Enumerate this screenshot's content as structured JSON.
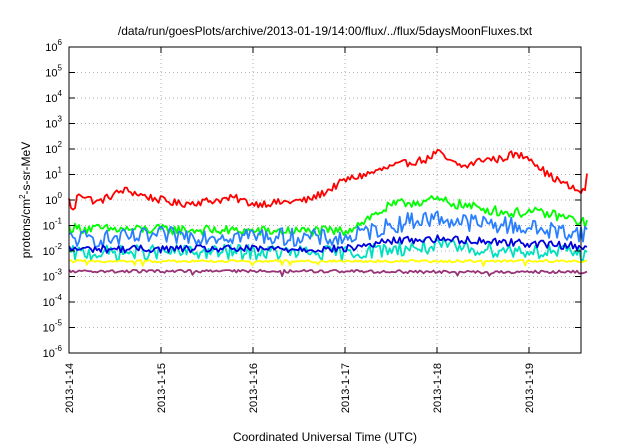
{
  "chart_data": {
    "type": "line",
    "title": "/data/run/goesPlots/archive/2013-01-19/14:00/flux/../flux/5daysMoonFluxes.txt",
    "xlabel": "Coordinated Universal Time (UTC)",
    "ylabel": "protons/cm2-s-sr-MeV",
    "ylabel_parts": {
      "pre": "protons/cm",
      "sup": "2",
      "post": "-s-sr-MeV"
    },
    "x_ticks": [
      "2013-1-14",
      "2013-1-15",
      "2013-1-16",
      "2013-1-17",
      "2013-1-18",
      "2013-1-19"
    ],
    "x_range_days": [
      0,
      5.63
    ],
    "y_scale": "log",
    "ylim": [
      1e-06,
      1000000.0
    ],
    "y_ticks": [
      {
        "base": "10",
        "exp": "-6",
        "value": 1e-06
      },
      {
        "base": "10",
        "exp": "-5",
        "value": 1e-05
      },
      {
        "base": "10",
        "exp": "-4",
        "value": 0.0001
      },
      {
        "base": "10",
        "exp": "-3",
        "value": 0.001
      },
      {
        "base": "10",
        "exp": "-2",
        "value": 0.01
      },
      {
        "base": "10",
        "exp": "-1",
        "value": 0.1
      },
      {
        "base": "10",
        "exp": "0",
        "value": 1
      },
      {
        "base": "10",
        "exp": "1",
        "value": 10
      },
      {
        "base": "10",
        "exp": "2",
        "value": 100
      },
      {
        "base": "10",
        "exp": "3",
        "value": 1000
      },
      {
        "base": "10",
        "exp": "4",
        "value": 10000
      },
      {
        "base": "10",
        "exp": "5",
        "value": 100000
      },
      {
        "base": "10",
        "exp": "6",
        "value": 1000000
      }
    ],
    "grid": true,
    "series": [
      {
        "color": "#ff0000",
        "noise": 0.15,
        "points": [
          [
            0,
            1.0
          ],
          [
            0.05,
            0.3
          ],
          [
            0.1,
            2.0
          ],
          [
            0.3,
            0.8
          ],
          [
            0.6,
            2.5
          ],
          [
            0.9,
            1.2
          ],
          [
            1.2,
            0.7
          ],
          [
            1.5,
            0.9
          ],
          [
            1.8,
            1.2
          ],
          [
            2.0,
            0.7
          ],
          [
            2.3,
            0.8
          ],
          [
            2.6,
            1.0
          ],
          [
            2.8,
            2.2
          ],
          [
            3.0,
            6.0
          ],
          [
            3.3,
            12.0
          ],
          [
            3.5,
            20.0
          ],
          [
            3.7,
            30.0
          ],
          [
            3.9,
            40.0
          ],
          [
            4.0,
            80.0
          ],
          [
            4.15,
            30.0
          ],
          [
            4.3,
            20.0
          ],
          [
            4.5,
            40.0
          ],
          [
            4.7,
            40.0
          ],
          [
            4.8,
            60.0
          ],
          [
            5.0,
            50.0
          ],
          [
            5.2,
            10.0
          ],
          [
            5.4,
            4.0
          ],
          [
            5.5,
            2.5
          ],
          [
            5.6,
            2.0
          ],
          [
            5.63,
            8.0
          ]
        ]
      },
      {
        "color": "#00ff00",
        "noise": 0.2,
        "points": [
          [
            0,
            0.08
          ],
          [
            0.5,
            0.07
          ],
          [
            1.0,
            0.07
          ],
          [
            2.0,
            0.06
          ],
          [
            3.0,
            0.06
          ],
          [
            3.2,
            0.15
          ],
          [
            3.5,
            0.6
          ],
          [
            3.7,
            0.8
          ],
          [
            4.0,
            1.0
          ],
          [
            4.3,
            0.6
          ],
          [
            4.6,
            0.4
          ],
          [
            4.8,
            0.3
          ],
          [
            5.0,
            0.35
          ],
          [
            5.3,
            0.25
          ],
          [
            5.63,
            0.12
          ]
        ]
      },
      {
        "color": "#2a7fff",
        "noise": 0.35,
        "points": [
          [
            0,
            0.03
          ],
          [
            0.5,
            0.03
          ],
          [
            1.0,
            0.04
          ],
          [
            2.0,
            0.04
          ],
          [
            3.0,
            0.03
          ],
          [
            3.2,
            0.05
          ],
          [
            3.5,
            0.1
          ],
          [
            3.7,
            0.15
          ],
          [
            4.0,
            0.2
          ],
          [
            4.2,
            0.15
          ],
          [
            4.5,
            0.12
          ],
          [
            4.8,
            0.1
          ],
          [
            5.0,
            0.08
          ],
          [
            5.3,
            0.06
          ],
          [
            5.63,
            0.05
          ]
        ]
      },
      {
        "color": "#00e0c0",
        "noise": 0.3,
        "points": [
          [
            0,
            0.008
          ],
          [
            1.0,
            0.009
          ],
          [
            2.0,
            0.009
          ],
          [
            3.0,
            0.008
          ],
          [
            3.5,
            0.012
          ],
          [
            4.0,
            0.015
          ],
          [
            4.5,
            0.012
          ],
          [
            5.0,
            0.01
          ],
          [
            5.63,
            0.008
          ]
        ]
      },
      {
        "color": "#0000dd",
        "noise": 0.15,
        "points": [
          [
            0,
            0.012
          ],
          [
            1.0,
            0.012
          ],
          [
            2.0,
            0.012
          ],
          [
            3.0,
            0.012
          ],
          [
            3.5,
            0.025
          ],
          [
            4.0,
            0.03
          ],
          [
            4.5,
            0.025
          ],
          [
            5.0,
            0.02
          ],
          [
            5.63,
            0.015
          ]
        ]
      },
      {
        "color": "#ffff00",
        "noise": 0.05,
        "points": [
          [
            0,
            0.004
          ],
          [
            1.0,
            0.004
          ],
          [
            2.0,
            0.004
          ],
          [
            3.0,
            0.004
          ],
          [
            4.0,
            0.004
          ],
          [
            5.0,
            0.004
          ],
          [
            5.63,
            0.004
          ]
        ]
      },
      {
        "color": "#993377",
        "noise": 0.06,
        "points": [
          [
            0,
            0.0016
          ],
          [
            1.0,
            0.0016
          ],
          [
            2.0,
            0.0016
          ],
          [
            3.0,
            0.0016
          ],
          [
            4.0,
            0.0015
          ],
          [
            5.0,
            0.0015
          ],
          [
            5.63,
            0.0015
          ]
        ]
      }
    ]
  }
}
